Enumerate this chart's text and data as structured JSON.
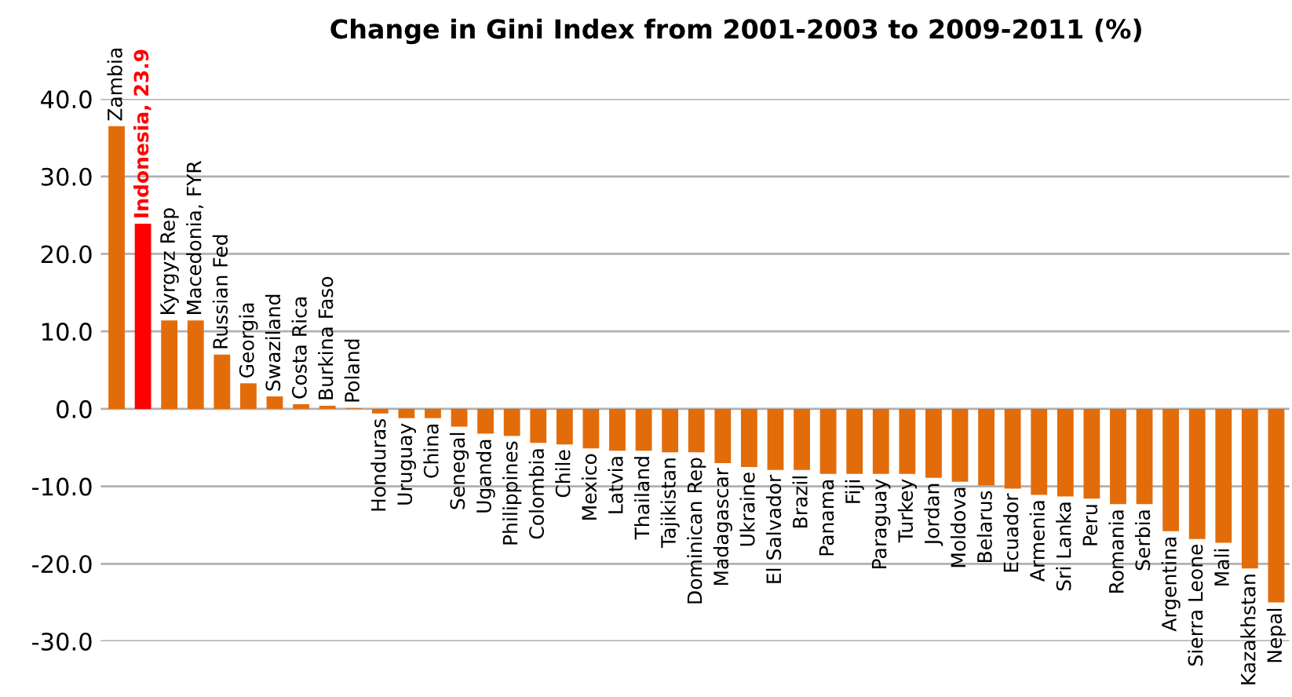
{
  "chart_data": {
    "type": "bar",
    "title": "Change in Gini Index from 2001-2003 to 2009-2011 (%)",
    "categories": [
      "Zambia",
      "Indonesia, 23.9",
      "Kyrgyz Rep",
      "Macedonia, FYR",
      "Russian Fed",
      "Georgia",
      "Swaziland",
      "Costa Rica",
      "Burkina Faso",
      "Poland",
      "Honduras",
      "Uruguay",
      "China",
      "Senegal",
      "Uganda",
      "Philippines",
      "Colombia",
      "Chile",
      "Mexico",
      "Latvia",
      "Thailand",
      "Tajikistan",
      "Dominican Rep",
      "Madagascar",
      "Ukraine",
      "El Salvador",
      "Brazil",
      "Panama",
      "Fiji",
      "Paraguay",
      "Turkey",
      "Jordan",
      "Moldova",
      "Belarus",
      "Ecuador",
      "Armenia",
      "Sri Lanka",
      "Peru",
      "Romania",
      "Serbia",
      "Argentina",
      "Sierra Leone",
      "Mali",
      "Kazakhstan",
      "Nepal"
    ],
    "values": [
      36.5,
      23.9,
      11.4,
      11.4,
      7.0,
      3.3,
      1.6,
      0.6,
      0.4,
      0.1,
      -0.6,
      -1.2,
      -1.2,
      -2.3,
      -3.2,
      -3.5,
      -4.4,
      -4.6,
      -5.1,
      -5.4,
      -5.4,
      -5.6,
      -5.6,
      -7.0,
      -7.5,
      -7.9,
      -7.9,
      -8.4,
      -8.4,
      -8.4,
      -8.4,
      -8.9,
      -9.4,
      -9.9,
      -10.3,
      -11.1,
      -11.3,
      -11.6,
      -12.3,
      -12.3,
      -15.8,
      -16.8,
      -17.3,
      -20.6,
      -25.0
    ],
    "colors": [
      "#e36c0a",
      "#ff0000",
      "#e36c0a",
      "#e36c0a",
      "#e36c0a",
      "#e36c0a",
      "#e36c0a",
      "#e36c0a",
      "#e36c0a",
      "#e36c0a",
      "#e36c0a",
      "#e36c0a",
      "#e36c0a",
      "#e36c0a",
      "#e36c0a",
      "#e36c0a",
      "#e36c0a",
      "#e36c0a",
      "#e36c0a",
      "#e36c0a",
      "#e36c0a",
      "#e36c0a",
      "#e36c0a",
      "#e36c0a",
      "#e36c0a",
      "#e36c0a",
      "#e36c0a",
      "#e36c0a",
      "#e36c0a",
      "#e36c0a",
      "#e36c0a",
      "#e36c0a",
      "#e36c0a",
      "#e36c0a",
      "#e36c0a",
      "#e36c0a",
      "#e36c0a",
      "#e36c0a",
      "#e36c0a",
      "#e36c0a",
      "#e36c0a",
      "#e36c0a",
      "#e36c0a",
      "#e36c0a",
      "#e36c0a"
    ],
    "ylim": [
      -30,
      40
    ],
    "yticks": [
      {
        "value": -30,
        "label": "-30.0"
      },
      {
        "value": -20,
        "label": "-20.0"
      },
      {
        "value": -10,
        "label": "-10.0"
      },
      {
        "value": 0,
        "label": "0.0"
      },
      {
        "value": 10,
        "label": "10.0"
      },
      {
        "value": 20,
        "label": "20.0"
      },
      {
        "value": 30,
        "label": "30.0"
      },
      {
        "value": 40,
        "label": "40.0"
      }
    ],
    "grid": "y",
    "tick_labels": "y"
  }
}
